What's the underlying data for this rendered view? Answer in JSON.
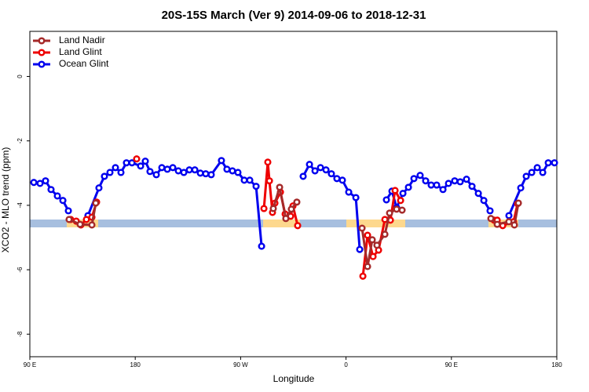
{
  "chart_data": {
    "type": "line",
    "title": "20S-15S March (Ver 9)   2014-09-06 to 2018-12-31",
    "xlabel": "Longitude",
    "ylabel": "XCO2 - MLO trend (ppm)",
    "xlim": [
      90,
      540
    ],
    "ylim": [
      -8.7,
      1.4
    ],
    "xticks": [
      {
        "value": 90,
        "label": "90 E"
      },
      180,
      {
        "value": 270,
        "label": "90 W"
      },
      {
        "value": 360,
        "label": "0"
      },
      {
        "value": 450,
        "label": "90 E"
      },
      {
        "value": 540,
        "label": "180"
      }
    ],
    "yticks": [
      -8,
      -6,
      -4,
      -2,
      0
    ],
    "legend": "topleft",
    "series": [
      {
        "name": "Land Nadir",
        "color": "#a52a2a",
        "x": [
          123.5,
          132.9,
          143.0,
          146.3,
          null,
          297.9,
          303.3,
          308.6,
          313.3,
          318.0,
          null,
          373.7,
          378.4,
          382.4,
          386.4,
          393.2,
          397.2,
          403.2,
          407.9,
          null,
          483.7,
          489.1,
          499.1,
          503.8,
          507.2
        ],
        "values": [
          -4.44,
          -4.59,
          -4.61,
          -3.93,
          null,
          -4.1,
          -3.44,
          -4.41,
          -4.12,
          -3.9,
          null,
          -4.71,
          -5.9,
          -5.07,
          -5.24,
          -4.9,
          -4.24,
          -4.12,
          -4.15,
          null,
          -4.41,
          -4.59,
          -4.51,
          -4.61,
          -3.93
        ]
      },
      {
        "name": "Land Glint",
        "color": "#ee0000",
        "x": [
          124.9,
          129.6,
          133.6,
          138.3,
          143.0,
          147.0,
          null,
          181.2,
          null,
          289.9,
          293.2,
          294.6,
          297.2,
          299.3,
          304.0,
          308.0,
          312.7,
          314.7,
          318.7,
          null,
          374.4,
          378.4,
          383.1,
          387.8,
          393.2,
          397.9,
          401.9,
          406.6,
          null,
          486.4,
          489.1,
          493.8,
          503.1,
          506.5
        ],
        "values": [
          -4.44,
          -4.49,
          -4.61,
          -4.44,
          -4.37,
          -3.9,
          null,
          -2.56,
          null,
          -4.1,
          -2.66,
          -3.24,
          -4.22,
          -3.93,
          -3.59,
          -4.27,
          -4.34,
          -4.02,
          -4.63,
          null,
          -6.2,
          -4.93,
          -5.59,
          -5.39,
          -4.44,
          -4.46,
          -3.54,
          -3.85,
          null,
          -4.46,
          -4.46,
          -4.63,
          -4.51,
          -3.95
        ]
      },
      {
        "name": "Ocean Glint",
        "color": "#0000ee",
        "x": [
          93.4,
          98.7,
          103.4,
          108.1,
          113.5,
          118.2,
          122.9,
          null,
          139.6,
          149.0,
          153.7,
          158.4,
          163.1,
          167.8,
          172.5,
          177.2,
          184.6,
          188.6,
          192.6,
          198.0,
          202.7,
          207.4,
          212.1,
          216.8,
          221.5,
          226.2,
          230.9,
          235.6,
          240.2,
          244.9,
          253.6,
          258.3,
          263.0,
          267.7,
          273.1,
          277.8,
          283.2,
          287.9,
          null,
          323.4,
          328.8,
          333.5,
          338.2,
          342.9,
          347.5,
          352.2,
          356.9,
          362.3,
          368.4,
          371.7,
          null,
          394.5,
          399.2,
          403.2,
          408.6,
          413.3,
          418.0,
          423.3,
          428.0,
          432.7,
          437.4,
          442.8,
          447.5,
          452.8,
          457.5,
          462.9,
          467.6,
          473.0,
          477.7,
          483.0,
          null,
          499.1,
          509.2,
          513.9,
          518.6,
          523.3,
          528.0,
          532.7,
          538.0
        ],
        "values": [
          -3.29,
          -3.32,
          -3.24,
          -3.51,
          -3.71,
          -3.85,
          -4.17,
          null,
          -4.32,
          -3.46,
          -3.1,
          -2.98,
          -2.83,
          -2.98,
          -2.68,
          -2.68,
          -2.78,
          -2.63,
          -2.95,
          -3.05,
          -2.83,
          -2.88,
          -2.83,
          -2.93,
          -2.98,
          -2.9,
          -2.9,
          -3.0,
          -3.02,
          -3.05,
          -2.61,
          -2.88,
          -2.93,
          -2.98,
          -3.22,
          -3.22,
          -3.41,
          -5.27,
          null,
          -3.1,
          -2.73,
          -2.93,
          -2.83,
          -2.9,
          -3.02,
          -3.17,
          -3.22,
          -3.59,
          -3.76,
          -5.37,
          null,
          -3.83,
          -3.56,
          -4.07,
          -3.63,
          -3.44,
          -3.17,
          -3.07,
          -3.24,
          -3.37,
          -3.37,
          -3.51,
          -3.32,
          -3.24,
          -3.27,
          -3.19,
          -3.41,
          -3.63,
          -3.85,
          -4.17,
          null,
          -4.32,
          -3.46,
          -3.1,
          -2.98,
          -2.83,
          -2.98,
          -2.68,
          -2.68
        ]
      }
    ]
  }
}
